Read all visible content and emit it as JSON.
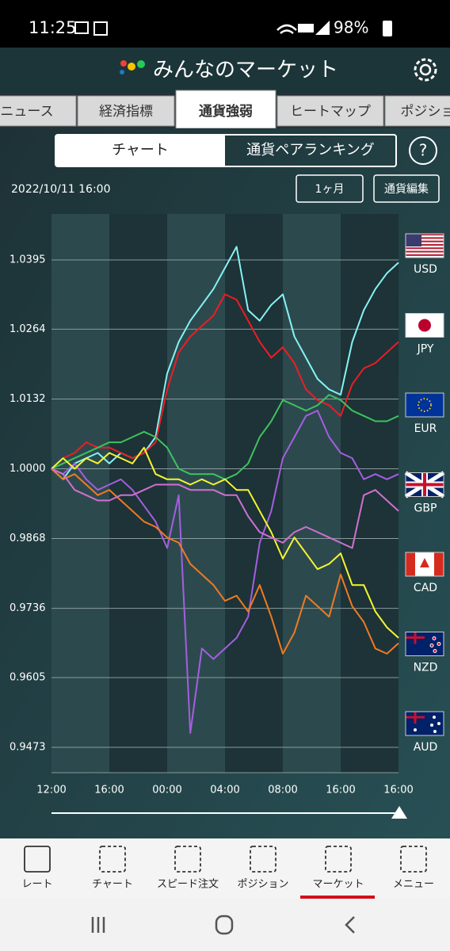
{
  "status_bar": {
    "time": "11:25",
    "battery": "98%"
  },
  "header": {
    "title": "みんなのマーケット"
  },
  "tabs": [
    "ニュース",
    "経済指標",
    "通貨強弱",
    "ヒートマップ",
    "ポジション"
  ],
  "segments": [
    "チャート",
    "通貨ペアランキング"
  ],
  "help": "?",
  "timestamp": "2022/10/11 16:00",
  "buttons": [
    "1ヶ月",
    "通貨編集"
  ],
  "chart_data": {
    "type": "line",
    "x": [
      0,
      0.2,
      0.4,
      0.6,
      0.8,
      1,
      1.2,
      1.4,
      1.6,
      1.8,
      2,
      2.2,
      2.4,
      2.6,
      2.8,
      3,
      3.2,
      3.4,
      3.6,
      3.8,
      4,
      4.2,
      4.4,
      4.6,
      4.8,
      5,
      5.2,
      5.4,
      5.6,
      5.8,
      6
    ],
    "xlim": [
      0,
      6
    ],
    "xticks": [
      {
        "value": 0,
        "label": "12:00"
      },
      {
        "value": 1,
        "label": "16:00"
      },
      {
        "value": 2,
        "label": "00:00"
      },
      {
        "value": 3,
        "label": "04:00"
      },
      {
        "value": 4,
        "label": "08:00"
      },
      {
        "value": 5,
        "label": "16:00"
      },
      {
        "value": 6,
        "label": "16:00"
      }
    ],
    "ylim": [
      0.9425,
      1.0482
    ],
    "yticks": [
      1.0395,
      1.0264,
      1.0132,
      {
        "value": 1,
        "label": "1.0000"
      },
      0.9868,
      0.9736,
      0.9605,
      0.9473
    ],
    "series": [
      {
        "name": "USD",
        "color": "#86f2f4",
        "values": [
          1,
          0.998,
          1.001,
          1.002,
          1.003,
          1.001,
          1.003,
          1.002,
          1.003,
          1.006,
          1.018,
          1.024,
          1.028,
          1.031,
          1.034,
          1.038,
          1.042,
          1.03,
          1.028,
          1.031,
          1.033,
          1.025,
          1.021,
          1.017,
          1.015,
          1.014,
          1.024,
          1.03,
          1.034,
          1.037,
          1.039
        ]
      },
      {
        "name": "JPY",
        "color": "#ee1c25",
        "values": [
          1,
          1.002,
          1.003,
          1.005,
          1.004,
          1.004,
          1.003,
          1.002,
          1.003,
          1.005,
          1.015,
          1.022,
          1.025,
          1.027,
          1.029,
          1.033,
          1.032,
          1.028,
          1.024,
          1.021,
          1.023,
          1.02,
          1.015,
          1.013,
          1.012,
          1.01,
          1.016,
          1.019,
          1.02,
          1.022,
          1.024
        ]
      },
      {
        "name": "EUR",
        "color": "#3fc25e",
        "values": [
          1,
          1.001,
          1.002,
          1.003,
          1.004,
          1.005,
          1.005,
          1.006,
          1.007,
          1.006,
          1.004,
          1,
          0.999,
          0.999,
          0.999,
          0.998,
          0.999,
          1.001,
          1.006,
          1.009,
          1.013,
          1.012,
          1.011,
          1.012,
          1.014,
          1.013,
          1.011,
          1.01,
          1.009,
          1.009,
          1.01
        ]
      },
      {
        "name": "GBP",
        "color": "#a55ee0",
        "values": [
          1,
          0.999,
          1.001,
          0.998,
          0.996,
          0.997,
          0.998,
          0.996,
          0.993,
          0.99,
          0.985,
          0.995,
          0.95,
          0.966,
          0.964,
          0.966,
          0.968,
          0.972,
          0.986,
          0.992,
          1.002,
          1.006,
          1.01,
          1.011,
          1.006,
          1.003,
          1.002,
          0.998,
          0.999,
          0.998,
          0.999
        ]
      },
      {
        "name": "CAD",
        "color": "#f5f530",
        "values": [
          1,
          1.002,
          1,
          1.002,
          1.001,
          1.003,
          1.002,
          1.001,
          1.004,
          0.999,
          0.998,
          0.998,
          0.997,
          0.998,
          0.997,
          0.998,
          0.996,
          0.996,
          0.992,
          0.988,
          0.983,
          0.987,
          0.984,
          0.981,
          0.982,
          0.984,
          0.978,
          0.978,
          0.973,
          0.97,
          0.968
        ]
      },
      {
        "name": "NZD",
        "color": "#f07a22",
        "values": [
          1,
          0.998,
          0.999,
          0.997,
          0.995,
          0.996,
          0.994,
          0.992,
          0.99,
          0.989,
          0.987,
          0.986,
          0.982,
          0.98,
          0.978,
          0.975,
          0.976,
          0.973,
          0.978,
          0.972,
          0.965,
          0.969,
          0.976,
          0.974,
          0.972,
          0.98,
          0.974,
          0.971,
          0.966,
          0.965,
          0.967
        ]
      },
      {
        "name": "AUD",
        "color": "#d070d0",
        "values": [
          1,
          0.999,
          0.996,
          0.995,
          0.994,
          0.994,
          0.995,
          0.995,
          0.996,
          0.997,
          0.997,
          0.997,
          0.996,
          0.996,
          0.996,
          0.995,
          0.995,
          0.991,
          0.988,
          0.987,
          0.986,
          0.988,
          0.989,
          0.988,
          0.987,
          0.986,
          0.985,
          0.995,
          0.996,
          0.994,
          0.992
        ]
      }
    ]
  },
  "bottom_nav": [
    "レート",
    "チャート",
    "スピード注文",
    "ポジション",
    "マーケット",
    "メニュー"
  ]
}
